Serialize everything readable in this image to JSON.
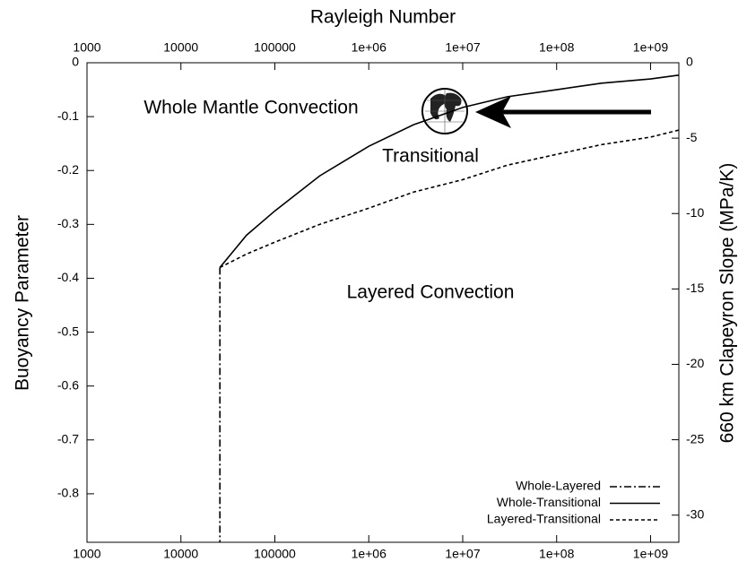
{
  "chart_data": {
    "type": "line",
    "xlabel": "Rayleigh Number",
    "ylabel": "Buoyancy Parameter",
    "y2label": "660 km Clapeyron Slope (MPa/K)",
    "annotations": [
      "Whole Mantle Convection",
      "Transitional",
      "Layered Convection"
    ],
    "xscale": "log",
    "xlim": [
      1000,
      2000000000
    ],
    "xticks": [
      1000,
      10000,
      100000,
      {
        "value": 1000000,
        "label": "1e+06"
      },
      {
        "value": 10000000,
        "label": "1e+07"
      },
      {
        "value": 100000000,
        "label": "1e+08"
      },
      {
        "value": 1000000000,
        "label": "1e+09"
      }
    ],
    "ylim": [
      -0.89,
      0
    ],
    "yticks": [
      0,
      -0.1,
      -0.2,
      -0.3,
      -0.4,
      -0.5,
      -0.6,
      -0.7,
      -0.8
    ],
    "y2lim": [
      -31.8,
      0
    ],
    "y2ticks": [
      0,
      -5,
      -10,
      -15,
      -20,
      -25,
      -30
    ],
    "legend": "lower right",
    "series": [
      {
        "name": "Whole-Layered",
        "color": "#000000",
        "style": "dashdot",
        "x": [
          26000,
          26000
        ],
        "values": [
          -0.38,
          -0.89
        ]
      },
      {
        "name": "Whole-Transitional",
        "color": "#000000",
        "style": "solid",
        "x": [
          26000,
          50000,
          100000,
          300000,
          1000000,
          3000000,
          10000000,
          30000000,
          100000000,
          300000000,
          1000000000,
          2000000000
        ],
        "values": [
          -0.38,
          -0.32,
          -0.275,
          -0.21,
          -0.155,
          -0.115,
          -0.083,
          -0.063,
          -0.05,
          -0.038,
          -0.03,
          -0.023
        ]
      },
      {
        "name": "Layered-Transitional",
        "color": "#000000",
        "style": "dashed",
        "x": [
          26000,
          50000,
          100000,
          300000,
          1000000,
          3000000,
          10000000,
          30000000,
          100000000,
          300000000,
          1000000000,
          2000000000
        ],
        "values": [
          -0.38,
          -0.355,
          -0.333,
          -0.3,
          -0.27,
          -0.24,
          -0.217,
          -0.19,
          -0.17,
          -0.152,
          -0.138,
          -0.125
        ]
      }
    ]
  }
}
